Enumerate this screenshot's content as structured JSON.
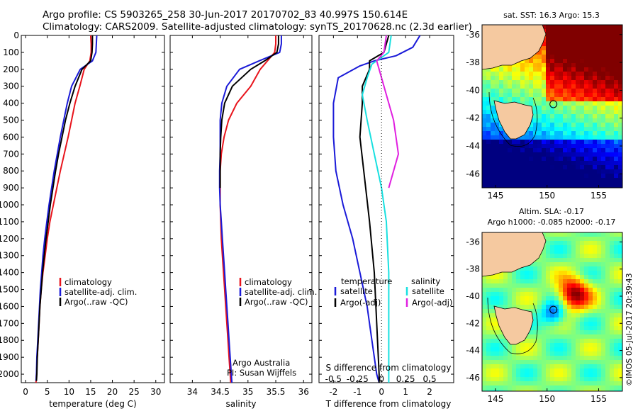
{
  "figure": {
    "title_line1": "Argo profile: CS 5903265_258 30-Jun-2017 20170702_83 40.997S 150.614E",
    "title_line2": "Climatology: CARS2009. Satellite-adjusted climatology: synTS_20170628.nc (2.3d earlier)",
    "footer": "©IMOS 05-Jul-2017 20:39:43"
  },
  "colors": {
    "climatology": "#e8141c",
    "satellite": "#1a1ad8",
    "argo": "#000000",
    "satellite_s": "#18e0e0",
    "argo_s": "#e020e0",
    "land": "#f5c9a0"
  },
  "chart_data": [
    {
      "id": "temperature",
      "type": "line",
      "xlabel": "temperature (deg C)",
      "ylabel": "",
      "xlim": [
        -1,
        32
      ],
      "ylim": [
        2050,
        0
      ],
      "xticks": [
        0,
        5,
        10,
        15,
        20,
        25,
        30
      ],
      "yticks": [
        0,
        100,
        200,
        300,
        400,
        500,
        600,
        700,
        800,
        900,
        1000,
        1100,
        1200,
        1300,
        1400,
        1500,
        1600,
        1700,
        1800,
        1900,
        2000
      ],
      "legend": [
        "climatology",
        "satellite-adj. clim.",
        "Argo(..raw -QC)"
      ],
      "series": [
        {
          "name": "climatology",
          "color_key": "climatology",
          "points": [
            [
              15,
              0
            ],
            [
              15.1,
              50
            ],
            [
              15.1,
              100
            ],
            [
              14.8,
              150
            ],
            [
              13.5,
              200
            ],
            [
              12.5,
              300
            ],
            [
              11.4,
              400
            ],
            [
              10.6,
              500
            ],
            [
              9.8,
              600
            ],
            [
              8.9,
              700
            ],
            [
              8.0,
              800
            ],
            [
              7.2,
              900
            ],
            [
              6.4,
              1000
            ],
            [
              5.6,
              1100
            ],
            [
              5.0,
              1200
            ],
            [
              4.5,
              1300
            ],
            [
              4.0,
              1400
            ],
            [
              3.6,
              1500
            ],
            [
              3.3,
              1600
            ],
            [
              3.1,
              1700
            ],
            [
              2.9,
              1800
            ],
            [
              2.7,
              1900
            ],
            [
              2.5,
              2000
            ],
            [
              2.4,
              2050
            ]
          ]
        },
        {
          "name": "satellite-adj. clim.",
          "color_key": "satellite",
          "points": [
            [
              16.4,
              0
            ],
            [
              16.3,
              50
            ],
            [
              16.2,
              100
            ],
            [
              15.4,
              150
            ],
            [
              12.6,
              200
            ],
            [
              10.6,
              300
            ],
            [
              9.6,
              400
            ],
            [
              8.8,
              500
            ],
            [
              8.0,
              600
            ],
            [
              7.3,
              700
            ],
            [
              6.6,
              800
            ],
            [
              6.0,
              900
            ],
            [
              5.4,
              1000
            ],
            [
              4.9,
              1100
            ],
            [
              4.4,
              1200
            ],
            [
              4.0,
              1300
            ],
            [
              3.7,
              1400
            ],
            [
              3.4,
              1500
            ],
            [
              3.2,
              1600
            ],
            [
              3.0,
              1700
            ],
            [
              2.8,
              1800
            ],
            [
              2.6,
              1900
            ],
            [
              2.5,
              2000
            ],
            [
              2.4,
              2040
            ]
          ]
        },
        {
          "name": "Argo(..raw -QC)",
          "color_key": "argo",
          "points": [
            [
              15.4,
              0
            ],
            [
              15.4,
              50
            ],
            [
              15.3,
              100
            ],
            [
              15.0,
              150
            ],
            [
              13.0,
              200
            ],
            [
              11.4,
              300
            ],
            [
              10.2,
              400
            ],
            [
              9.2,
              500
            ],
            [
              8.4,
              600
            ],
            [
              7.6,
              700
            ],
            [
              6.9,
              800
            ],
            [
              6.3,
              900
            ],
            [
              5.7,
              1000
            ],
            [
              5.2,
              1100
            ],
            [
              4.7,
              1200
            ],
            [
              4.3,
              1300
            ],
            [
              3.9,
              1400
            ],
            [
              3.6,
              1500
            ],
            [
              3.3,
              1600
            ],
            [
              3.1,
              1700
            ],
            [
              2.9,
              1800
            ],
            [
              2.7,
              1900
            ],
            [
              2.6,
              2000
            ],
            [
              2.5,
              2040
            ]
          ]
        }
      ]
    },
    {
      "id": "salinity",
      "type": "line",
      "xlabel": "salinity",
      "ylabel": "",
      "xlim": [
        33.6,
        36.15
      ],
      "ylim": [
        2050,
        0
      ],
      "xticks": [
        34,
        34.5,
        35,
        35.5,
        36
      ],
      "legend": [
        "climatology",
        "satellite-adj. clim.",
        "Argo(..raw -QC)"
      ],
      "annotation_line1": "Argo Australia",
      "annotation_line2": "PI: Susan Wijffels",
      "series": [
        {
          "name": "climatology",
          "color_key": "climatology",
          "points": [
            [
              35.5,
              0
            ],
            [
              35.5,
              50
            ],
            [
              35.48,
              100
            ],
            [
              35.35,
              150
            ],
            [
              35.22,
              200
            ],
            [
              35.05,
              300
            ],
            [
              34.8,
              400
            ],
            [
              34.65,
              500
            ],
            [
              34.57,
              600
            ],
            [
              34.52,
              700
            ],
            [
              34.5,
              800
            ],
            [
              34.5,
              900
            ],
            [
              34.5,
              1000
            ],
            [
              34.51,
              1100
            ],
            [
              34.52,
              1200
            ],
            [
              34.54,
              1300
            ],
            [
              34.56,
              1400
            ],
            [
              34.58,
              1500
            ],
            [
              34.6,
              1600
            ],
            [
              34.62,
              1700
            ],
            [
              34.64,
              1800
            ],
            [
              34.66,
              1900
            ],
            [
              34.68,
              2000
            ],
            [
              34.69,
              2050
            ]
          ]
        },
        {
          "name": "satellite-adj. clim.",
          "color_key": "satellite",
          "points": [
            [
              35.6,
              0
            ],
            [
              35.6,
              50
            ],
            [
              35.57,
              100
            ],
            [
              35.2,
              150
            ],
            [
              34.85,
              200
            ],
            [
              34.62,
              300
            ],
            [
              34.53,
              400
            ],
            [
              34.5,
              500
            ],
            [
              34.5,
              600
            ],
            [
              34.5,
              700
            ],
            [
              34.49,
              800
            ],
            [
              34.49,
              900
            ],
            [
              34.5,
              1000
            ],
            [
              34.52,
              1100
            ],
            [
              34.54,
              1200
            ],
            [
              34.56,
              1300
            ],
            [
              34.58,
              1400
            ],
            [
              34.6,
              1500
            ],
            [
              34.62,
              1600
            ],
            [
              34.64,
              1700
            ],
            [
              34.66,
              1800
            ],
            [
              34.68,
              1900
            ],
            [
              34.7,
              2000
            ],
            [
              34.71,
              2050
            ]
          ]
        },
        {
          "name": "Argo(..raw -QC)",
          "color_key": "argo",
          "points": [
            [
              35.55,
              0
            ],
            [
              35.55,
              50
            ],
            [
              35.52,
              100
            ],
            [
              35.3,
              150
            ],
            [
              35.05,
              200
            ],
            [
              34.72,
              300
            ],
            [
              34.58,
              400
            ],
            [
              34.53,
              500
            ],
            [
              34.51,
              600
            ],
            [
              34.5,
              700
            ],
            [
              34.5,
              800
            ],
            [
              34.5,
              900
            ]
          ]
        }
      ]
    },
    {
      "id": "difference",
      "type": "line",
      "xlabel": "T difference from climatology",
      "x2label": "S difference from climatology",
      "ylabel": "",
      "xlim": [
        -2.6,
        3.0
      ],
      "x2lim": [
        -0.65,
        0.75
      ],
      "ylim": [
        2050,
        0
      ],
      "xticks": [
        -2,
        -1,
        0,
        1,
        2
      ],
      "x2ticks": [
        "-0.5",
        "-0.25",
        "0",
        "0.25",
        "0.5"
      ],
      "legend_temperature_title": "temperature",
      "legend_salinity_title": "salinity",
      "legend": [
        "satellite",
        "Argo(-adj)",
        "satellite",
        "Argo(-adj)"
      ],
      "series": [
        {
          "name": "satellite",
          "color_key": "satellite",
          "points": [
            [
              1.6,
              0
            ],
            [
              1.3,
              70
            ],
            [
              0.6,
              120
            ],
            [
              -0.3,
              150
            ],
            [
              -0.9,
              180
            ],
            [
              -1.8,
              250
            ],
            [
              -2.0,
              400
            ],
            [
              -2.0,
              600
            ],
            [
              -1.9,
              800
            ],
            [
              -1.6,
              1000
            ],
            [
              -1.2,
              1200
            ],
            [
              -0.9,
              1400
            ],
            [
              -0.6,
              1600
            ],
            [
              -0.4,
              1800
            ],
            [
              -0.2,
              2000
            ],
            [
              -0.1,
              2050
            ]
          ]
        },
        {
          "name": "Argo(-adj)",
          "color_key": "argo",
          "points": [
            [
              0.3,
              0
            ],
            [
              0.1,
              100
            ],
            [
              -0.5,
              150
            ],
            [
              -0.5,
              200
            ],
            [
              -0.8,
              300
            ],
            [
              -0.8,
              400
            ],
            [
              -0.9,
              600
            ],
            [
              -0.5,
              1100
            ],
            [
              -0.3,
              1400
            ],
            [
              -0.2,
              1700
            ],
            [
              -0.1,
              2000
            ],
            [
              -0.1,
              2050
            ]
          ]
        },
        {
          "name": "satellite",
          "color_key": "satellite_s",
          "points": [
            [
              0.4,
              0
            ],
            [
              0.3,
              100
            ],
            [
              -0.4,
              170
            ],
            [
              -0.6,
              250
            ],
            [
              -0.8,
              350
            ],
            [
              -0.6,
              500
            ],
            [
              -0.3,
              700
            ],
            [
              0.0,
              900
            ],
            [
              0.2,
              1100
            ],
            [
              0.3,
              1400
            ],
            [
              0.3,
              1700
            ],
            [
              0.3,
              2000
            ],
            [
              0.3,
              2050
            ]
          ]
        },
        {
          "name": "Argo(-adj)",
          "color_key": "argo_s",
          "points": [
            [
              0.2,
              0
            ],
            [
              0.1,
              100
            ],
            [
              -0.2,
              150
            ],
            [
              -0.1,
              200
            ],
            [
              0.1,
              300
            ],
            [
              0.3,
              400
            ],
            [
              0.5,
              500
            ],
            [
              0.6,
              600
            ],
            [
              0.7,
              700
            ],
            [
              0.5,
              800
            ],
            [
              0.3,
              900
            ]
          ]
        }
      ]
    },
    {
      "id": "sst-map",
      "type": "heatmap",
      "title": "sat. SST: 16.3  Argo: 15.3",
      "xticks": [
        145,
        150,
        155
      ],
      "yticks": [
        -36,
        -38,
        -40,
        -42,
        -44,
        -46
      ],
      "xlim": [
        143.7,
        157.3
      ],
      "ylim": [
        -47,
        -35.3
      ],
      "float_position": [
        150.614,
        -40.997
      ]
    },
    {
      "id": "sla-map",
      "type": "heatmap",
      "title_line1": "Altim. SLA: -0.17",
      "title_line2": "Argo h1000: -0.085  h2000: -0.17",
      "xticks": [
        145,
        150,
        155
      ],
      "yticks": [
        -36,
        -38,
        -40,
        -42,
        -44,
        -46
      ],
      "xlim": [
        143.7,
        157.3
      ],
      "ylim": [
        -47,
        -35.3
      ],
      "float_position": [
        150.614,
        -40.997
      ]
    }
  ]
}
